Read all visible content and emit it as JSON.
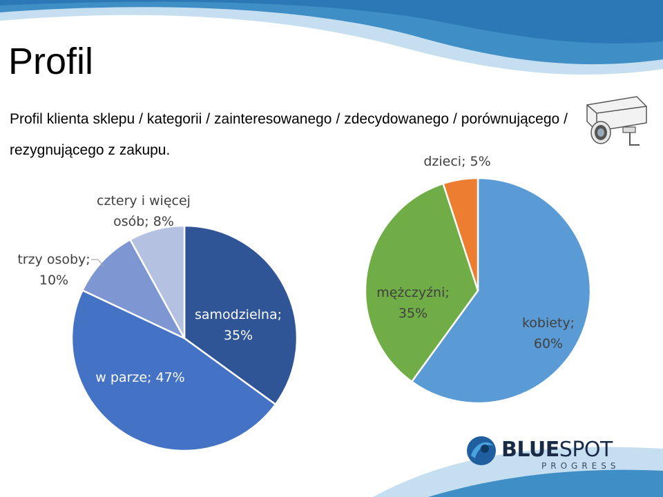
{
  "slide": {
    "title": "Profil",
    "subtitle": "Profil klienta sklepu / kategorii / zainteresowanego / zdecydowanego / porównującego / rezygnującego z zakupu."
  },
  "logo": {
    "word1": "BLUE",
    "word2": "SPOT",
    "sub": "PROGRESS"
  },
  "colors": {
    "band_light": "#c6dff0",
    "band_dark": "#3f8ec6"
  },
  "icons": [
    "camera-icon",
    "bluespot-logo-icon"
  ],
  "chart_data": [
    {
      "type": "pie",
      "title": "",
      "labels": [
        "samodzielna",
        "w parze",
        "trzy osoby",
        "cztery i więcej osób"
      ],
      "values": [
        35,
        47,
        10,
        8
      ],
      "data_labels": [
        [
          "samodzielna;",
          "35%"
        ],
        [
          "w parze; 47%"
        ],
        [
          "trzy osoby;",
          "10%"
        ],
        [
          "cztery i więcej",
          "osób; 8%"
        ]
      ],
      "colors": [
        "#2f5597",
        "#4472c4",
        "#7e96d1",
        "#b4c1e1"
      ]
    },
    {
      "type": "pie",
      "title": "",
      "labels": [
        "kobiety",
        "mężczyźni",
        "dzieci"
      ],
      "values": [
        60,
        35,
        5
      ],
      "data_labels": [
        [
          "kobiety;",
          "60%"
        ],
        [
          "mężczyźni;",
          "35%"
        ],
        [
          "dzieci; 5%"
        ]
      ],
      "colors": [
        "#5b9bd5",
        "#70ad47",
        "#ed7d31"
      ]
    }
  ]
}
